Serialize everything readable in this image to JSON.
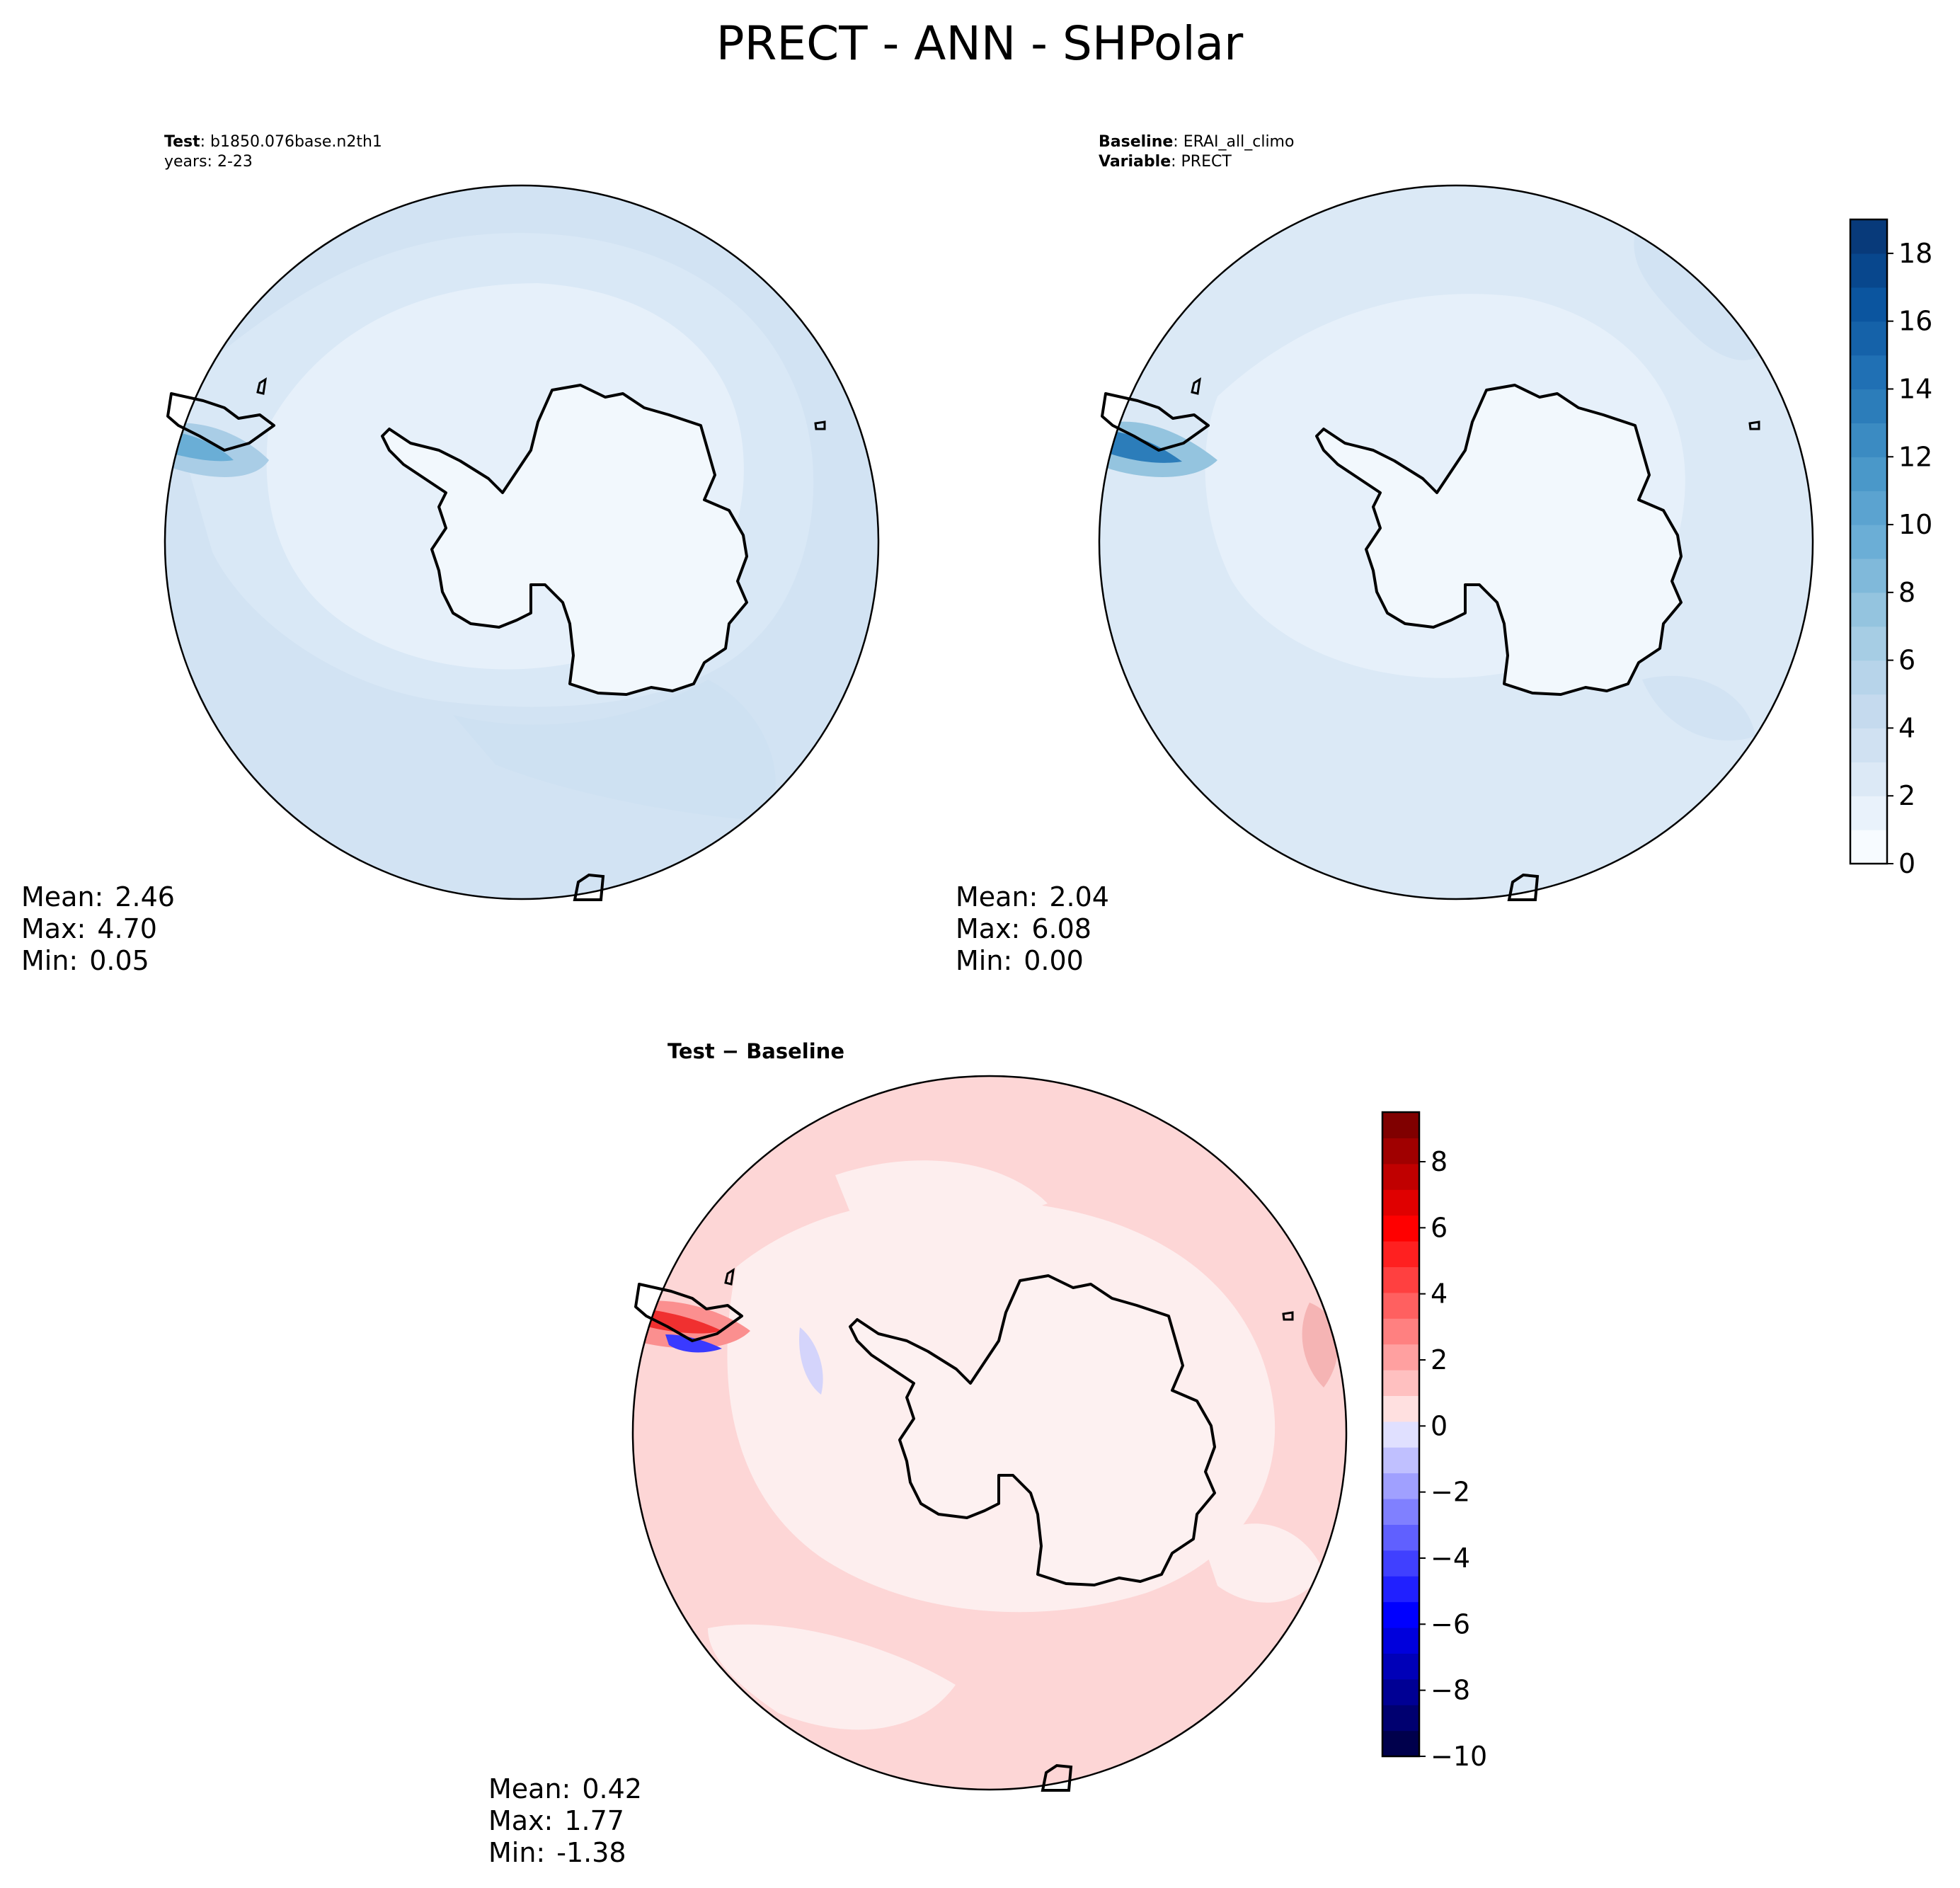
{
  "title": "PRECT - ANN - SHPolar",
  "colors": {
    "test_fill": "#d4e4f4",
    "baseline_fill": "#dbe9f6",
    "continent_fill": "#f2f8fd",
    "diff_fill": "#fcdada",
    "diff_inner_fill": "#fdeeee",
    "outline": "#000000"
  },
  "chart_data": [
    {
      "type": "heatmap",
      "projection": "south-polar-stereographic",
      "name": "test",
      "header": [
        {
          "bold": "Test",
          "text": ": b1850.076base.n2th1"
        },
        {
          "bold": "",
          "text": "years: 2-23"
        }
      ],
      "stats": [
        {
          "label": "Mean:",
          "value": "2.46"
        },
        {
          "label": "Max:",
          "value": "4.70"
        },
        {
          "label": "Min:",
          "value": "0.05"
        }
      ]
    },
    {
      "type": "heatmap",
      "projection": "south-polar-stereographic",
      "name": "baseline",
      "header": [
        {
          "bold": "Baseline",
          "text": ": ERAI_all_climo"
        },
        {
          "bold": "Variable",
          "text": ": PRECT"
        }
      ],
      "stats": [
        {
          "label": "Mean:",
          "value": "2.04"
        },
        {
          "label": "Max:",
          "value": "6.08"
        },
        {
          "label": "Min:",
          "value": "0.00"
        }
      ],
      "colorbar": {
        "cmap": "Blues",
        "vmin": 0,
        "vmax": 19,
        "levels": 19,
        "ticks": [
          0,
          2,
          4,
          6,
          8,
          10,
          12,
          14,
          16,
          18
        ],
        "colors": [
          "#f7fbff",
          "#e9f2fb",
          "#dce9f6",
          "#d0e1f2",
          "#c5daee",
          "#b7d4ea",
          "#a6cde4",
          "#94c4df",
          "#80b9da",
          "#6baed6",
          "#5ba3d0",
          "#4a98c9",
          "#3b8bc2",
          "#2c7dba",
          "#2070b4",
          "#1562a9",
          "#0b559f",
          "#08478d",
          "#083a7a"
        ]
      },
      "shared_colorbar_for": [
        "test",
        "baseline"
      ]
    },
    {
      "type": "heatmap",
      "projection": "south-polar-stereographic",
      "name": "difference",
      "header": [
        {
          "bold": "Test − Baseline",
          "text": ""
        }
      ],
      "stats": [
        {
          "label": "Mean:",
          "value": "0.42"
        },
        {
          "label": "Max:",
          "value": "1.77"
        },
        {
          "label": "Min:",
          "value": "-1.38"
        }
      ],
      "colorbar": {
        "cmap": "seismic",
        "vmin": -10,
        "vmax": 9.5,
        "ticks": [
          -10,
          -8,
          -6,
          -4,
          -2,
          0,
          2,
          4,
          6,
          8
        ],
        "tick_labels": [
          "−10",
          "−8",
          "−6",
          "−4",
          "−2",
          "0",
          "2",
          "4",
          "6",
          "8"
        ],
        "colors": [
          "#00004c",
          "#000070",
          "#000094",
          "#0000b8",
          "#0000dc",
          "#0000ff",
          "#2020ff",
          "#4040ff",
          "#6060ff",
          "#8080ff",
          "#a0a0ff",
          "#c0c0ff",
          "#e0e0ff",
          "#ffe0e0",
          "#ffc0c0",
          "#ffa0a0",
          "#ff8080",
          "#ff6060",
          "#ff4040",
          "#ff2020",
          "#ff0000",
          "#e00000",
          "#c00000",
          "#a00000",
          "#800000"
        ]
      }
    }
  ]
}
